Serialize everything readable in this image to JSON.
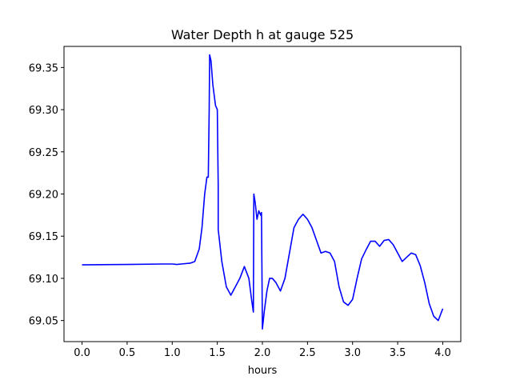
{
  "chart_data": {
    "type": "line",
    "title": "Water Depth h at gauge 525",
    "xlabel": "hours",
    "ylabel": "",
    "xlim": [
      -0.2,
      4.2
    ],
    "ylim": [
      69.025,
      69.375
    ],
    "grid": false,
    "line_color": "#0000ff",
    "x_ticks": [
      0.0,
      0.5,
      1.0,
      1.5,
      2.0,
      2.5,
      3.0,
      3.5,
      4.0
    ],
    "x_tick_labels": [
      "0.0",
      "0.5",
      "1.0",
      "1.5",
      "2.0",
      "2.5",
      "3.0",
      "3.5",
      "4.0"
    ],
    "y_ticks": [
      69.05,
      69.1,
      69.15,
      69.2,
      69.25,
      69.3,
      69.35
    ],
    "y_tick_labels": [
      "69.05",
      "69.10",
      "69.15",
      "69.20",
      "69.25",
      "69.30",
      "69.35"
    ],
    "series": [
      {
        "name": "",
        "x": [
          0.0,
          0.5,
          0.9,
          1.0,
          1.05,
          1.1,
          1.2,
          1.25,
          1.3,
          1.33,
          1.36,
          1.385,
          1.4,
          1.41,
          1.415,
          1.43,
          1.45,
          1.48,
          1.5,
          1.51,
          1.51,
          1.55,
          1.6,
          1.65,
          1.7,
          1.75,
          1.8,
          1.85,
          1.88,
          1.9,
          1.905,
          1.92,
          1.94,
          1.96,
          1.98,
          1.99,
          2.0,
          2.01,
          2.02,
          2.05,
          2.08,
          2.11,
          2.15,
          2.2,
          2.25,
          2.3,
          2.35,
          2.4,
          2.45,
          2.5,
          2.55,
          2.6,
          2.65,
          2.7,
          2.75,
          2.8,
          2.85,
          2.9,
          2.95,
          3.0,
          3.05,
          3.1,
          3.15,
          3.2,
          3.25,
          3.3,
          3.35,
          3.4,
          3.45,
          3.5,
          3.55,
          3.6,
          3.65,
          3.7,
          3.75,
          3.8,
          3.85,
          3.9,
          3.95,
          4.0
        ],
        "y": [
          69.116,
          69.1165,
          69.117,
          69.117,
          69.1165,
          69.117,
          69.118,
          69.12,
          69.135,
          69.16,
          69.2,
          69.22,
          69.22,
          69.3,
          69.365,
          69.358,
          69.33,
          69.305,
          69.3,
          69.21,
          69.158,
          69.12,
          69.09,
          69.08,
          69.09,
          69.1,
          69.114,
          69.1,
          69.075,
          69.06,
          69.2,
          69.19,
          69.17,
          69.18,
          69.175,
          69.178,
          69.04,
          69.05,
          69.06,
          69.085,
          69.1,
          69.1,
          69.095,
          69.085,
          69.1,
          69.13,
          69.16,
          69.17,
          69.176,
          69.17,
          69.16,
          69.145,
          69.13,
          69.132,
          69.13,
          69.12,
          69.09,
          69.072,
          69.068,
          69.075,
          69.1,
          69.123,
          69.134,
          69.144,
          69.144,
          69.138,
          69.145,
          69.146,
          69.14,
          69.13,
          69.12,
          69.125,
          69.13,
          69.128,
          69.115,
          69.095,
          69.07,
          69.055,
          69.05,
          69.064
        ]
      }
    ]
  }
}
